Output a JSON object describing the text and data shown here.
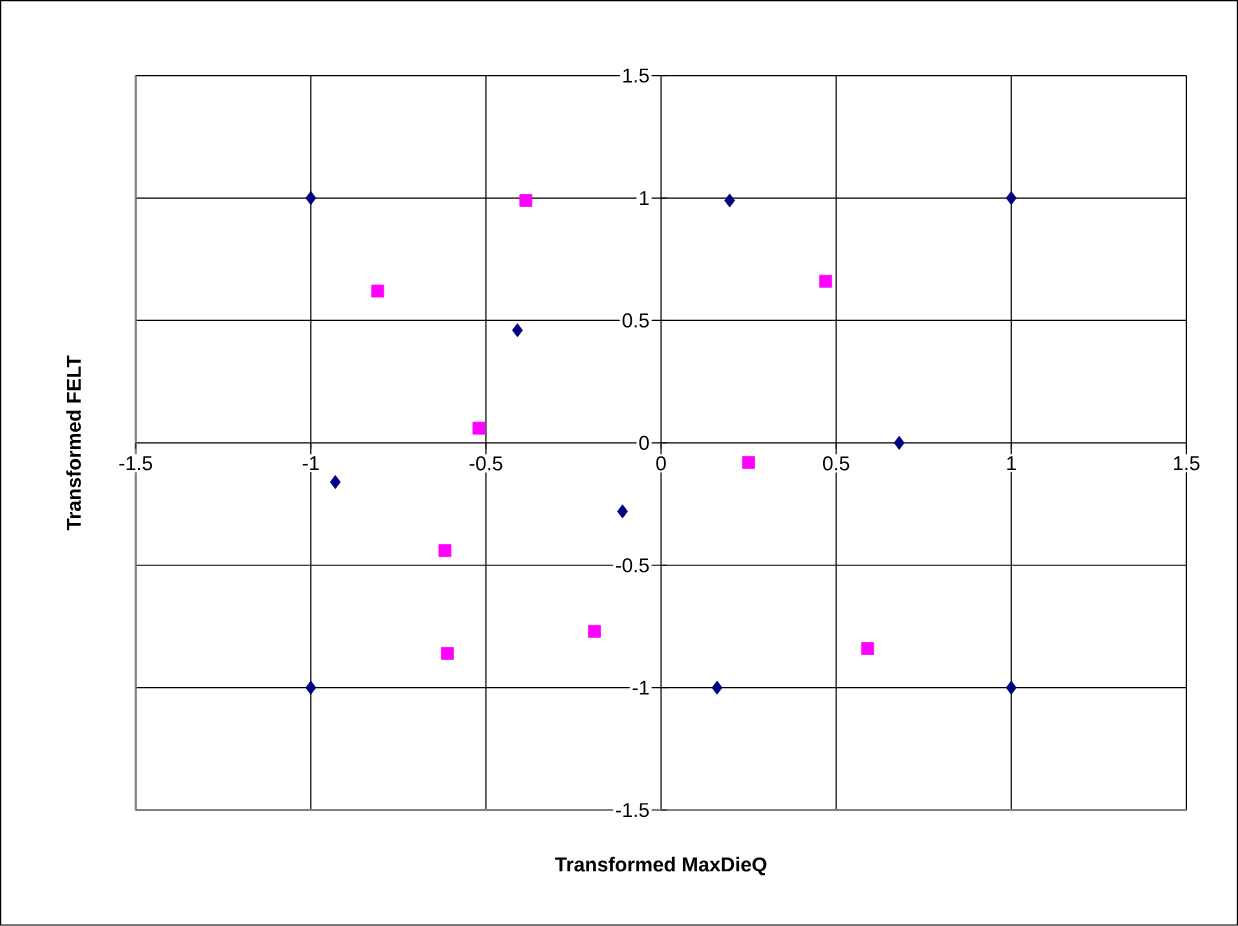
{
  "chart_data": {
    "type": "scatter",
    "xlabel": "Transformed MaxDieQ",
    "ylabel": "Transformed FELT",
    "xlim": [
      -1.5,
      1.5
    ],
    "ylim": [
      -1.5,
      1.5
    ],
    "xticks": [
      -1.5,
      -1,
      -0.5,
      0,
      0.5,
      1,
      1.5
    ],
    "yticks": [
      -1.5,
      -1,
      -0.5,
      0,
      0.5,
      1,
      1.5
    ],
    "grid": true,
    "series": [
      {
        "color": "#000080",
        "marker": "diamond",
        "x": [
          -1,
          1,
          0.196,
          -0.41,
          -0.93,
          0.68,
          -0.11,
          -1,
          0.16,
          1
        ],
        "values": [
          1,
          1,
          0.99,
          0.46,
          -0.16,
          0,
          -0.28,
          -1,
          -1,
          -1
        ]
      },
      {
        "color": "#ff00ff",
        "marker": "square",
        "x": [
          -0.386,
          -0.809,
          0.47,
          -0.52,
          0.25,
          -0.617,
          -0.61,
          -0.19,
          0.59
        ],
        "values": [
          0.99,
          0.62,
          0.66,
          0.06,
          -0.08,
          -0.44,
          -0.86,
          -0.77,
          -0.84
        ]
      }
    ]
  }
}
